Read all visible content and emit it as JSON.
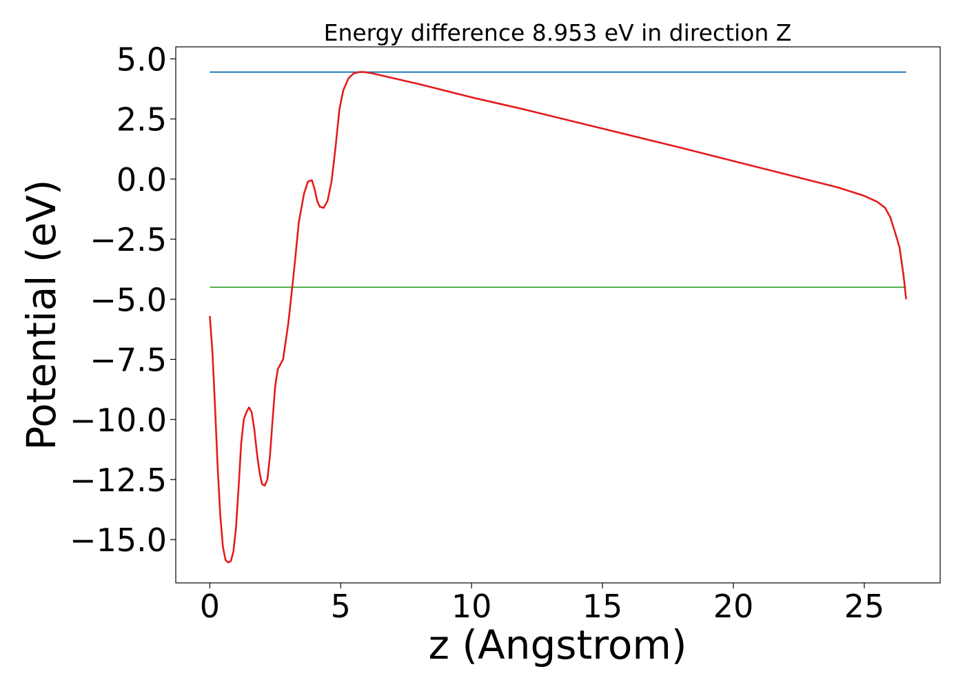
{
  "chart_data": {
    "type": "line",
    "title": "Energy difference 8.953 eV in direction Z",
    "xlabel": "z (Angstrom)",
    "ylabel": "Potential (eV)",
    "xlim": [
      -1.3,
      27.9
    ],
    "ylim": [
      -16.8,
      5.5
    ],
    "xticks": [
      0,
      5,
      10,
      15,
      20,
      25
    ],
    "xtick_labels": [
      "0",
      "5",
      "10",
      "15",
      "20",
      "25"
    ],
    "yticks": [
      5.0,
      2.5,
      0.0,
      -2.5,
      -5.0,
      -7.5,
      -10.0,
      -12.5,
      -15.0
    ],
    "ytick_labels": [
      "5.0",
      "2.5",
      "0.0",
      "−2.5",
      "−5.0",
      "−7.5",
      "−10.0",
      "−12.5",
      "−15.0"
    ],
    "grid": false,
    "colors": {
      "potential": "#e41a1c",
      "vacuum": "#1f77b4",
      "fermi": "#4daf4a"
    },
    "series": [
      {
        "key": "potential",
        "x": [
          0,
          0.1,
          0.2,
          0.3,
          0.4,
          0.5,
          0.6,
          0.7,
          0.8,
          0.9,
          1.0,
          1.1,
          1.2,
          1.3,
          1.4,
          1.5,
          1.6,
          1.7,
          1.8,
          1.9,
          2.0,
          2.1,
          2.2,
          2.3,
          2.4,
          2.5,
          2.6,
          2.8,
          3.0,
          3.2,
          3.4,
          3.6,
          3.75,
          3.9,
          4.0,
          4.1,
          4.2,
          4.35,
          4.5,
          4.65,
          4.8,
          4.95,
          5.1,
          5.3,
          5.5,
          5.7,
          5.9,
          6.2,
          7,
          8,
          10,
          12,
          15,
          18,
          20,
          22,
          24,
          25,
          25.5,
          25.8,
          26.0,
          26.2,
          26.35,
          26.5,
          26.6
        ],
        "y": [
          -5.7,
          -7.2,
          -9.5,
          -12.0,
          -14.0,
          -15.3,
          -15.85,
          -15.95,
          -15.9,
          -15.5,
          -14.5,
          -12.8,
          -11.0,
          -10.0,
          -9.7,
          -9.5,
          -9.7,
          -10.4,
          -11.4,
          -12.2,
          -12.7,
          -12.75,
          -12.5,
          -11.5,
          -10.0,
          -8.6,
          -7.9,
          -7.5,
          -6.0,
          -4.0,
          -1.8,
          -0.6,
          -0.1,
          -0.05,
          -0.4,
          -0.9,
          -1.15,
          -1.2,
          -0.9,
          -0.1,
          1.3,
          2.9,
          3.7,
          4.2,
          4.4,
          4.45,
          4.45,
          4.4,
          4.2,
          3.95,
          3.4,
          2.9,
          2.1,
          1.3,
          0.75,
          0.2,
          -0.35,
          -0.7,
          -0.95,
          -1.2,
          -1.6,
          -2.3,
          -2.85,
          -4.0,
          -5.0
        ]
      },
      {
        "key": "vacuum",
        "x": [
          0,
          26.6
        ],
        "y": [
          4.45,
          4.45
        ]
      },
      {
        "key": "fermi",
        "x": [
          0,
          26.6
        ],
        "y": [
          -4.5,
          -4.5
        ]
      }
    ]
  }
}
